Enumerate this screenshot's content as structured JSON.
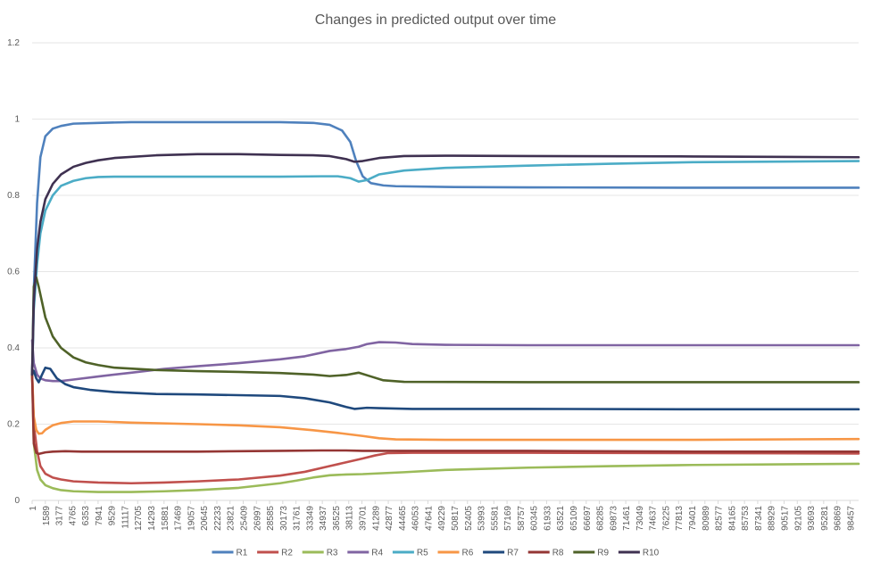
{
  "chart_data": {
    "type": "line",
    "title": "Changes in predicted output over time",
    "xlabel": "",
    "ylabel": "",
    "ylim": [
      0,
      1.2
    ],
    "y_ticks": [
      0,
      0.2,
      0.4,
      0.6,
      0.8,
      1,
      1.2
    ],
    "x_ticks": [
      "1",
      "1589",
      "3177",
      "4765",
      "6353",
      "7941",
      "9529",
      "11117",
      "12705",
      "14293",
      "15881",
      "17469",
      "19057",
      "20645",
      "22233",
      "23821",
      "25409",
      "26997",
      "28585",
      "30173",
      "31761",
      "33349",
      "34937",
      "36525",
      "38113",
      "39701",
      "41289",
      "42877",
      "44465",
      "46053",
      "47641",
      "49229",
      "50817",
      "52405",
      "53993",
      "55581",
      "57169",
      "58757",
      "60345",
      "61933",
      "63521",
      "65109",
      "66697",
      "68285",
      "69873",
      "71461",
      "73049",
      "74637",
      "76225",
      "77813",
      "79401",
      "80989",
      "82577",
      "84165",
      "85753",
      "87341",
      "88929",
      "90517",
      "92105",
      "93693",
      "95281",
      "96869",
      "98457"
    ],
    "x_range": [
      1,
      100000
    ],
    "grid": "horizontal",
    "legend_position": "bottom",
    "series": [
      {
        "name": "R1",
        "color": "#4f81bd",
        "x": [
          1,
          200,
          600,
          1000,
          1600,
          2500,
          3500,
          5000,
          8000,
          12000,
          20000,
          30000,
          34000,
          36000,
          37500,
          38500,
          39200,
          40000,
          41000,
          42500,
          44000,
          50000,
          60000,
          80000,
          100000
        ],
        "y": [
          0.33,
          0.55,
          0.78,
          0.9,
          0.955,
          0.975,
          0.982,
          0.988,
          0.99,
          0.992,
          0.992,
          0.992,
          0.99,
          0.985,
          0.97,
          0.94,
          0.89,
          0.85,
          0.832,
          0.826,
          0.824,
          0.822,
          0.821,
          0.82,
          0.82
        ]
      },
      {
        "name": "R2",
        "color": "#c0504d",
        "x": [
          1,
          200,
          600,
          1000,
          1600,
          2500,
          3500,
          5000,
          8000,
          12000,
          16000,
          20000,
          25000,
          30000,
          33000,
          36000,
          38000,
          40000,
          41500,
          43000,
          46000,
          60000,
          80000,
          100000
        ],
        "y": [
          0.33,
          0.2,
          0.13,
          0.09,
          0.07,
          0.06,
          0.055,
          0.05,
          0.047,
          0.045,
          0.047,
          0.05,
          0.055,
          0.065,
          0.075,
          0.09,
          0.1,
          0.11,
          0.118,
          0.124,
          0.125,
          0.125,
          0.124,
          0.123
        ]
      },
      {
        "name": "R3",
        "color": "#9bbb59",
        "x": [
          1,
          200,
          600,
          1000,
          1600,
          2500,
          3500,
          5000,
          8000,
          12000,
          16000,
          20000,
          25000,
          30000,
          32000,
          34000,
          36000,
          38000,
          40000,
          45000,
          50000,
          60000,
          70000,
          80000,
          100000
        ],
        "y": [
          0.33,
          0.15,
          0.08,
          0.055,
          0.04,
          0.032,
          0.027,
          0.024,
          0.022,
          0.022,
          0.024,
          0.027,
          0.033,
          0.045,
          0.052,
          0.06,
          0.066,
          0.068,
          0.069,
          0.074,
          0.08,
          0.086,
          0.09,
          0.093,
          0.096
        ]
      },
      {
        "name": "R4",
        "color": "#8064a2",
        "x": [
          1,
          200,
          600,
          1000,
          1600,
          2500,
          3500,
          5000,
          8000,
          12000,
          16000,
          20000,
          25000,
          30000,
          33000,
          36000,
          38000,
          39500,
          40500,
          42000,
          44000,
          46000,
          50000,
          60000,
          100000
        ],
        "y": [
          0.42,
          0.36,
          0.33,
          0.32,
          0.315,
          0.313,
          0.313,
          0.317,
          0.325,
          0.335,
          0.345,
          0.352,
          0.36,
          0.37,
          0.378,
          0.392,
          0.397,
          0.403,
          0.41,
          0.415,
          0.414,
          0.41,
          0.408,
          0.407,
          0.407
        ]
      },
      {
        "name": "R5",
        "color": "#4bacc6",
        "x": [
          1,
          200,
          600,
          1000,
          1600,
          2500,
          3500,
          5000,
          6500,
          8000,
          10000,
          15000,
          20000,
          30000,
          35000,
          37000,
          38500,
          39500,
          40500,
          42000,
          45000,
          50000,
          60000,
          70000,
          80000,
          100000
        ],
        "y": [
          0.33,
          0.5,
          0.62,
          0.7,
          0.76,
          0.8,
          0.825,
          0.838,
          0.845,
          0.848,
          0.849,
          0.849,
          0.849,
          0.849,
          0.85,
          0.85,
          0.845,
          0.836,
          0.84,
          0.855,
          0.865,
          0.872,
          0.878,
          0.883,
          0.887,
          0.89
        ]
      },
      {
        "name": "R6",
        "color": "#f79646",
        "x": [
          1,
          200,
          500,
          800,
          1200,
          1600,
          2500,
          3500,
          5000,
          8000,
          12000,
          20000,
          25000,
          30000,
          34000,
          37000,
          40000,
          42000,
          44000,
          50000,
          60000,
          80000,
          100000
        ],
        "y": [
          0.33,
          0.22,
          0.185,
          0.175,
          0.176,
          0.185,
          0.197,
          0.203,
          0.207,
          0.207,
          0.204,
          0.2,
          0.197,
          0.192,
          0.184,
          0.177,
          0.169,
          0.163,
          0.16,
          0.159,
          0.159,
          0.159,
          0.161
        ]
      },
      {
        "name": "R7",
        "color": "#1f497d",
        "x": [
          1,
          200,
          500,
          800,
          1200,
          1600,
          2200,
          3000,
          4000,
          5000,
          7000,
          10000,
          15000,
          20000,
          30000,
          33000,
          36000,
          38000,
          39000,
          40500,
          42000,
          46000,
          60000,
          80000,
          100000
        ],
        "y": [
          0.33,
          0.34,
          0.32,
          0.31,
          0.33,
          0.348,
          0.345,
          0.32,
          0.305,
          0.297,
          0.29,
          0.284,
          0.279,
          0.278,
          0.274,
          0.268,
          0.257,
          0.245,
          0.24,
          0.243,
          0.242,
          0.24,
          0.24,
          0.239,
          0.239
        ]
      },
      {
        "name": "R8",
        "color": "#943634",
        "x": [
          1,
          200,
          500,
          800,
          1200,
          1600,
          2500,
          4000,
          6000,
          10000,
          20000,
          30000,
          35000,
          38000,
          40000,
          45000,
          60000,
          80000,
          100000
        ],
        "y": [
          0.33,
          0.15,
          0.125,
          0.122,
          0.124,
          0.126,
          0.128,
          0.129,
          0.128,
          0.128,
          0.128,
          0.13,
          0.131,
          0.131,
          0.13,
          0.13,
          0.13,
          0.128,
          0.128
        ]
      },
      {
        "name": "R9",
        "color": "#4f6228",
        "x": [
          1,
          200,
          500,
          800,
          1200,
          1600,
          2500,
          3500,
          5000,
          6500,
          8000,
          10000,
          15000,
          20000,
          25000,
          30000,
          34000,
          36000,
          38000,
          39500,
          41000,
          42500,
          45000,
          60000,
          100000
        ],
        "y": [
          0.33,
          0.56,
          0.585,
          0.56,
          0.52,
          0.48,
          0.43,
          0.4,
          0.375,
          0.362,
          0.355,
          0.348,
          0.342,
          0.339,
          0.337,
          0.334,
          0.33,
          0.326,
          0.329,
          0.335,
          0.325,
          0.315,
          0.311,
          0.31,
          0.31
        ]
      },
      {
        "name": "R10",
        "color": "#3f3151",
        "x": [
          1,
          200,
          600,
          1000,
          1600,
          2500,
          3500,
          5000,
          6500,
          8000,
          10000,
          15000,
          20000,
          25000,
          30000,
          34000,
          36000,
          38000,
          39000,
          40000,
          42000,
          45000,
          50000,
          60000,
          80000,
          100000
        ],
        "y": [
          0.33,
          0.52,
          0.66,
          0.73,
          0.79,
          0.83,
          0.855,
          0.875,
          0.885,
          0.892,
          0.898,
          0.905,
          0.908,
          0.908,
          0.906,
          0.905,
          0.903,
          0.895,
          0.888,
          0.89,
          0.898,
          0.903,
          0.904,
          0.903,
          0.902,
          0.9
        ]
      }
    ]
  }
}
